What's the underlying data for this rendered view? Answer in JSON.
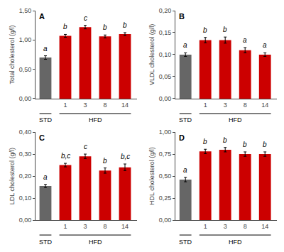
{
  "chart_data": [
    {
      "type": "bar",
      "title": "A",
      "ylabel": "Total cholesterol (g/l)",
      "categories": [
        null,
        "1",
        "3",
        "8",
        "14"
      ],
      "values": [
        0.7,
        1.07,
        1.22,
        1.06,
        1.1
      ],
      "errors": [
        0.03,
        0.025,
        0.03,
        0.025,
        0.025
      ],
      "colors": [
        "#666666",
        "#cc0000",
        "#cc0000",
        "#cc0000",
        "#cc0000"
      ],
      "ylim": [
        0,
        1.5
      ],
      "yticks": [
        {
          "value": 0.0,
          "label": "0,00"
        },
        {
          "value": 0.5,
          "label": "0,50"
        },
        {
          "value": 1.0,
          "label": "1,00"
        },
        {
          "value": 1.5,
          "label": "1,50"
        }
      ],
      "grid": false,
      "annotations": [
        {
          "text": "a",
          "at": 0
        },
        {
          "text": "b",
          "at": 1
        },
        {
          "text": "c",
          "at": 2
        },
        {
          "text": "b",
          "at": 3
        },
        {
          "text": "b",
          "at": 4
        },
        {
          "text": "STD",
          "span": [
            0,
            0
          ]
        },
        {
          "text": "HFD",
          "span": [
            1,
            4
          ]
        }
      ]
    },
    {
      "type": "bar",
      "title": "B",
      "ylabel": "VLDL cholesterol (g/l)",
      "categories": [
        null,
        "1",
        "3",
        "8",
        "14"
      ],
      "values": [
        0.1,
        0.133,
        0.133,
        0.11,
        0.1
      ],
      "errors": [
        0.004,
        0.006,
        0.007,
        0.006,
        0.004
      ],
      "colors": [
        "#666666",
        "#cc0000",
        "#cc0000",
        "#cc0000",
        "#cc0000"
      ],
      "ylim": [
        0,
        0.2
      ],
      "yticks": [
        {
          "value": 0.0,
          "label": "0,00"
        },
        {
          "value": 0.05,
          "label": "0,05"
        },
        {
          "value": 0.1,
          "label": "0,10"
        },
        {
          "value": 0.15,
          "label": "0,15"
        },
        {
          "value": 0.2,
          "label": "0,20"
        }
      ],
      "grid": false,
      "annotations": [
        {
          "text": "a",
          "at": 0
        },
        {
          "text": "b",
          "at": 1
        },
        {
          "text": "b",
          "at": 2
        },
        {
          "text": "a",
          "at": 3
        },
        {
          "text": "a",
          "at": 4
        },
        {
          "text": "STD",
          "span": [
            0,
            0
          ]
        },
        {
          "text": "HFD",
          "span": [
            1,
            4
          ]
        }
      ]
    },
    {
      "type": "bar",
      "title": "C",
      "ylabel": "LDL cholesterol (g/l)",
      "categories": [
        null,
        "1",
        "3",
        "8",
        "14"
      ],
      "values": [
        0.155,
        0.25,
        0.29,
        0.225,
        0.24
      ],
      "errors": [
        0.007,
        0.008,
        0.01,
        0.012,
        0.015
      ],
      "colors": [
        "#666666",
        "#cc0000",
        "#cc0000",
        "#cc0000",
        "#cc0000"
      ],
      "ylim": [
        0,
        0.4
      ],
      "yticks": [
        {
          "value": 0.0,
          "label": "0,00"
        },
        {
          "value": 0.1,
          "label": "0,10"
        },
        {
          "value": 0.2,
          "label": "0,20"
        },
        {
          "value": 0.3,
          "label": "0,30"
        },
        {
          "value": 0.4,
          "label": "0,40"
        }
      ],
      "grid": false,
      "annotations": [
        {
          "text": "a",
          "at": 0
        },
        {
          "text": "b,c",
          "at": 1
        },
        {
          "text": "c",
          "at": 2
        },
        {
          "text": "b",
          "at": 3
        },
        {
          "text": "b,c",
          "at": 4
        },
        {
          "text": "STD",
          "span": [
            0,
            0
          ]
        },
        {
          "text": "HFD",
          "span": [
            1,
            4
          ]
        }
      ]
    },
    {
      "type": "bar",
      "title": "D",
      "ylabel": "HDL cholesterol (g/l)",
      "categories": [
        null,
        "1",
        "3",
        "8",
        "14"
      ],
      "values": [
        0.46,
        0.78,
        0.8,
        0.75,
        0.75
      ],
      "errors": [
        0.025,
        0.025,
        0.025,
        0.025,
        0.025
      ],
      "colors": [
        "#666666",
        "#cc0000",
        "#cc0000",
        "#cc0000",
        "#cc0000"
      ],
      "ylim": [
        0,
        1.0
      ],
      "yticks": [
        {
          "value": 0.0,
          "label": "0,00"
        },
        {
          "value": 0.25,
          "label": "0,25"
        },
        {
          "value": 0.5,
          "label": "0,50"
        },
        {
          "value": 0.75,
          "label": "0,75"
        },
        {
          "value": 1.0,
          "label": "1,00"
        }
      ],
      "grid": false,
      "annotations": [
        {
          "text": "a",
          "at": 0
        },
        {
          "text": "b",
          "at": 1
        },
        {
          "text": "b",
          "at": 2
        },
        {
          "text": "b",
          "at": 3
        },
        {
          "text": "b",
          "at": 4
        },
        {
          "text": "STD",
          "span": [
            0,
            0
          ]
        },
        {
          "text": "HFD",
          "span": [
            1,
            4
          ]
        }
      ]
    }
  ]
}
